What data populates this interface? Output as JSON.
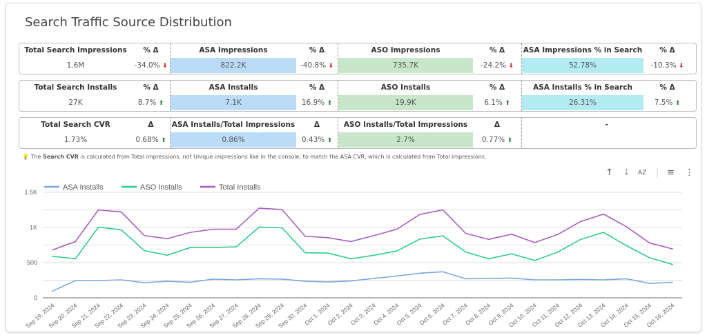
{
  "title": "Search Traffic Source Distribution",
  "scorecards": [
    [
      {
        "label": "Total Search Impressions",
        "value": "1.6M",
        "delta_label": "% Δ",
        "delta": "-34.0%",
        "dir": "down",
        "bg": ""
      },
      {
        "label": "ASA Impressions",
        "value": "822.2K",
        "delta_label": "% Δ",
        "delta": "-40.8%",
        "dir": "down",
        "bg": "blue"
      },
      {
        "label": "ASO Impressions",
        "value": "735.7K",
        "delta_label": "% Δ",
        "delta": "-24.2%",
        "dir": "down",
        "bg": "green"
      },
      {
        "label": "ASA Impressions % in Search",
        "value": "52.78%",
        "delta_label": "% Δ",
        "delta": "-10.3%",
        "dir": "down",
        "bg": "cyan"
      }
    ],
    [
      {
        "label": "Total Search Installs",
        "value": "27K",
        "delta_label": "% Δ",
        "delta": "8.7%",
        "dir": "up",
        "bg": ""
      },
      {
        "label": "ASA Installs",
        "value": "7.1K",
        "delta_label": "% Δ",
        "delta": "16.9%",
        "dir": "up",
        "bg": "blue"
      },
      {
        "label": "ASO Installs",
        "value": "19.9K",
        "delta_label": "% Δ",
        "delta": "6.1%",
        "dir": "up",
        "bg": "green"
      },
      {
        "label": "ASA Installs % in Search",
        "value": "26.31%",
        "delta_label": "% Δ",
        "delta": "7.5%",
        "dir": "up",
        "bg": "cyan"
      }
    ],
    [
      {
        "label": "Total Search CVR",
        "value": "1.73%",
        "delta_label": "Δ",
        "delta": "0.68%",
        "dir": "up",
        "bg": ""
      },
      {
        "label": "ASA Installs/Total Impressions",
        "value": "0.86%",
        "delta_label": "Δ",
        "delta": "0.43%",
        "dir": "up",
        "bg": "blue"
      },
      {
        "label": "ASO Installs/Total Impressions",
        "value": "2.7%",
        "delta_label": "Δ",
        "delta": "0.77%",
        "dir": "up",
        "bg": "green"
      },
      {
        "label": "-",
        "value": "",
        "delta_label": "",
        "delta": "",
        "dir": "",
        "bg": ""
      }
    ]
  ],
  "note": {
    "pre": "The ",
    "bold": "Search CVR",
    "post": " is calculated from Total impressions, not Unique impressions like in the console, to match the ASA CVR, which is calculated from Total impressions."
  },
  "toolbar": {
    "sort_asc": "↑",
    "sort_desc": "↓",
    "az": "AZ",
    "filter": "≡",
    "more": "⋮"
  },
  "chart_data": {
    "type": "line",
    "x": [
      "Sep 19, 2024",
      "Sep 20, 2024",
      "Sep 21, 2024",
      "Sep 22, 2024",
      "Sep 23, 2024",
      "Sep 24, 2024",
      "Sep 25, 2024",
      "Sep 26, 2024",
      "Sep 27, 2024",
      "Sep 28, 2024",
      "Sep 29, 2024",
      "Sep 30, 2024",
      "Oct 1, 2024",
      "Oct 2, 2024",
      "Oct 3, 2024",
      "Oct 4, 2024",
      "Oct 5, 2024",
      "Oct 6, 2024",
      "Oct 7, 2024",
      "Oct 8, 2024",
      "Oct 9, 2024",
      "Oct 10, 2024",
      "Oct 11, 2024",
      "Oct 12, 2024",
      "Oct 13, 2024",
      "Oct 14, 2024",
      "Oct 15, 2024",
      "Oct 16, 2024"
    ],
    "series": [
      {
        "name": "ASA Installs",
        "color": "#7ba7e0",
        "values": [
          95,
          245,
          245,
          255,
          215,
          235,
          220,
          265,
          255,
          270,
          265,
          235,
          225,
          240,
          275,
          310,
          350,
          370,
          270,
          275,
          280,
          255,
          255,
          260,
          255,
          270,
          205,
          220
        ]
      },
      {
        "name": "ASO Installs",
        "color": "#2ecc8a",
        "values": [
          590,
          555,
          1005,
          965,
          670,
          605,
          715,
          715,
          725,
          1005,
          995,
          640,
          635,
          555,
          605,
          665,
          835,
          880,
          650,
          555,
          625,
          530,
          650,
          830,
          930,
          740,
          570,
          475
        ]
      },
      {
        "name": "Total Installs",
        "color": "#a95cc0",
        "values": [
          680,
          800,
          1250,
          1220,
          885,
          840,
          930,
          975,
          975,
          1275,
          1255,
          875,
          855,
          800,
          885,
          975,
          1185,
          1250,
          915,
          830,
          905,
          785,
          900,
          1085,
          1190,
          1010,
          780,
          695
        ]
      }
    ],
    "yticks": [
      {
        "v": 0,
        "label": "0"
      },
      {
        "v": 500,
        "label": "500"
      },
      {
        "v": 1000,
        "label": "1K"
      },
      {
        "v": 1500,
        "label": "1.5K"
      }
    ],
    "ylim": [
      0,
      1500
    ],
    "grid": true,
    "legend": "top-left"
  }
}
